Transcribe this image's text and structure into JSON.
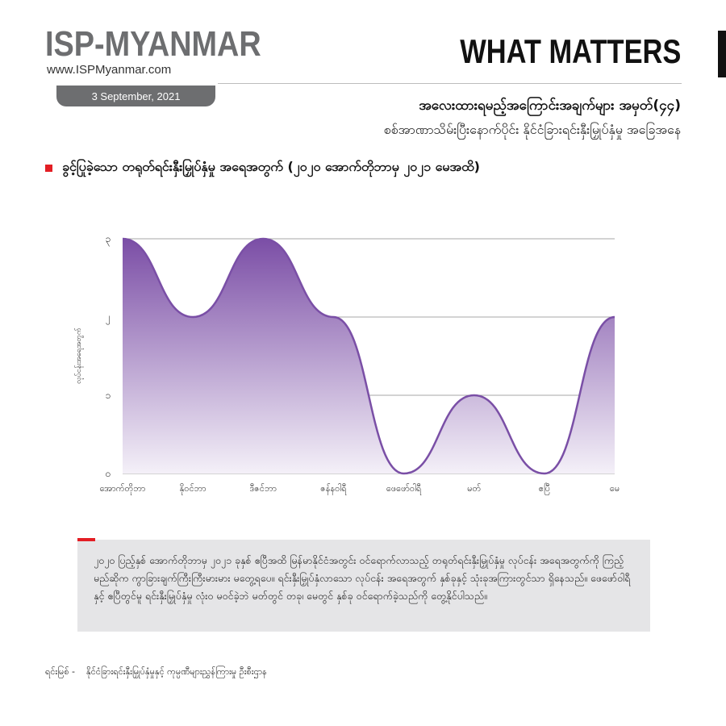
{
  "header": {
    "brand": "ISP-MYANMAR",
    "url": "www.ISPMyanmar.com",
    "date": "3 September, 2021",
    "series_label": "WHAT MATTERS",
    "title": "အလေးထားရမည့်အကြောင်းအချက်များ အမှတ်(၄၄)",
    "subtitle": "စစ်အာဏာသိမ်းပြီးနောက်ပိုင်း နိုင်ငံခြားရင်းနှီးမြှုပ်နှံမှု အခြေအနေ"
  },
  "section": {
    "heading": "ခွင့်ပြုခဲ့သော တရုတ်ရင်းနှီးမြှုပ်နှံမှု အရေအတွက် (၂၀၂၀ အောက်တိုဘာမှ ၂၀၂၁ မေအထိ)"
  },
  "chart_data": {
    "type": "area",
    "categories": [
      "အောက်တိုဘာ",
      "နိုဝင်ဘာ",
      "ဒီဇင်ဘာ",
      "ဇန်နဝါရီ",
      "ဖေဖော်ဝါရီ",
      "မတ်",
      "ဧပြီ",
      "မေ"
    ],
    "values": [
      3,
      2,
      3,
      2,
      0,
      1,
      0,
      2
    ],
    "yticks": [
      "၀",
      "၁",
      "၂",
      "၃"
    ],
    "ylabel": "လုပ်ငန်းအရေအတွက်",
    "ylim": [
      0,
      3
    ],
    "grid": true,
    "colors": {
      "line": "#7a4fa6",
      "fill_top": "#7b4ea6",
      "fill_bottom": "#f4f0f8",
      "grid": "#8a8a8a"
    }
  },
  "note": {
    "text": "၂၀၂၀ ပြည့်နှစ် အောက်တိုဘာမှ ၂၀၂၁ ခုနှစ် ဧပြီအထိ မြန်မာနိုင်ငံအတွင်း ဝင်ရောက်လာသည့် တရုတ်ရင်းနှီးမြှုပ်နှံမှု လုပ်ငန်း အရေအတွက်ကို ကြည့်မည်ဆိုက ကွာခြားချက်ကြီးကြီးမားမား မတွေ့ရပေ။ ရင်းနှီးမြှုပ်နှံလာသော လုပ်ငန်း အရေအတွက် နှစ်ခုနှင့် သုံးခုအကြားတွင်သာ ရှိနေသည်။ ဖေဖော်ဝါရီနှင့် ဧပြီတွင်မူ ရင်းနှီးမြှုပ်နှံမှု လုံးဝ မဝင်ခဲ့ဘဲ မတ်တွင် တခု၊ မေတွင် နှစ်ခု ဝင်ရောက်ခဲ့သည်ကို တွေ့နိုင်ပါသည်။"
  },
  "source": {
    "label": "ရင်းမြစ် -",
    "text": "နိုင်ငံခြားရင်းနှီးမြှုပ်နှံမှုနှင့် ကုမ္ပဏီများညွှန်ကြားမှု ဦးစီးဌာန"
  }
}
